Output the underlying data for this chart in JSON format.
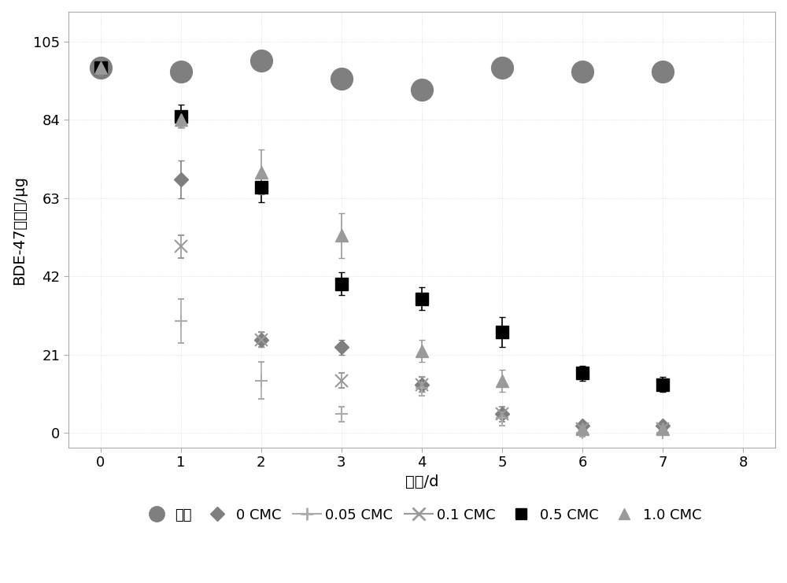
{
  "title": "",
  "xlabel": "时间/d",
  "ylabel": "BDE-47残留量/μg",
  "xlim": [
    -0.4,
    8.4
  ],
  "ylim": [
    -4,
    113
  ],
  "yticks": [
    0,
    21,
    42,
    63,
    84,
    105
  ],
  "xticks": [
    0,
    1,
    2,
    3,
    4,
    5,
    6,
    7,
    8
  ],
  "bg_color": "#ffffff",
  "series": {
    "blank": {
      "label": "空白",
      "x": [
        0,
        1,
        2,
        3,
        4,
        5,
        6,
        7
      ],
      "y": [
        98,
        97,
        100,
        95,
        92,
        98,
        97,
        97
      ],
      "yerr": [
        0,
        0,
        0,
        0,
        0,
        0,
        0,
        0
      ],
      "color": "#7f7f7f",
      "marker": "o",
      "markersize": 20,
      "zorder": 4
    },
    "cmc0": {
      "label": "0 CMC",
      "x": [
        0,
        1,
        2,
        3,
        4,
        5,
        6,
        7
      ],
      "y": [
        98,
        68,
        25,
        23,
        13,
        5,
        2,
        2
      ],
      "yerr": [
        2,
        5,
        2,
        2,
        2,
        1,
        1,
        1
      ],
      "color": "#7f7f7f",
      "marker": "D",
      "markersize": 9,
      "zorder": 5
    },
    "cmc005": {
      "label": "0.05 CMC",
      "x": [
        0,
        1,
        2,
        3,
        4,
        5,
        6,
        7
      ],
      "y": [
        98,
        30,
        14,
        5,
        12,
        4,
        0,
        0
      ],
      "yerr": [
        2,
        6,
        5,
        2,
        2,
        2,
        1,
        0
      ],
      "color": "#ababab",
      "marker": "+",
      "markersize": 12,
      "zorder": 5
    },
    "cmc01": {
      "label": "0.1 CMC",
      "x": [
        0,
        1,
        2,
        3,
        4,
        5,
        6,
        7
      ],
      "y": [
        98,
        50,
        25,
        14,
        13,
        5,
        1,
        1
      ],
      "yerr": [
        2,
        3,
        2,
        2,
        2,
        2,
        1,
        0
      ],
      "color": "#9a9a9a",
      "marker": "x",
      "markersize": 12,
      "zorder": 5
    },
    "cmc05": {
      "label": "0.5 CMC",
      "x": [
        0,
        1,
        2,
        3,
        4,
        5,
        6,
        7
      ],
      "y": [
        98,
        85,
        66,
        40,
        36,
        27,
        16,
        13
      ],
      "yerr": [
        2,
        3,
        4,
        3,
        3,
        4,
        2,
        2
      ],
      "color": "#000000",
      "marker": "s",
      "markersize": 11,
      "zorder": 5
    },
    "cmc10": {
      "label": "1.0 CMC",
      "x": [
        0,
        1,
        2,
        3,
        4,
        5,
        6,
        7
      ],
      "y": [
        98,
        84,
        70,
        53,
        22,
        14,
        1,
        1
      ],
      "yerr": [
        2,
        2,
        6,
        6,
        3,
        3,
        1,
        0
      ],
      "color": "#9a9a9a",
      "marker": "^",
      "markersize": 11,
      "zorder": 5
    }
  },
  "legend_fontsize": 13,
  "axis_fontsize": 14,
  "tick_fontsize": 13
}
